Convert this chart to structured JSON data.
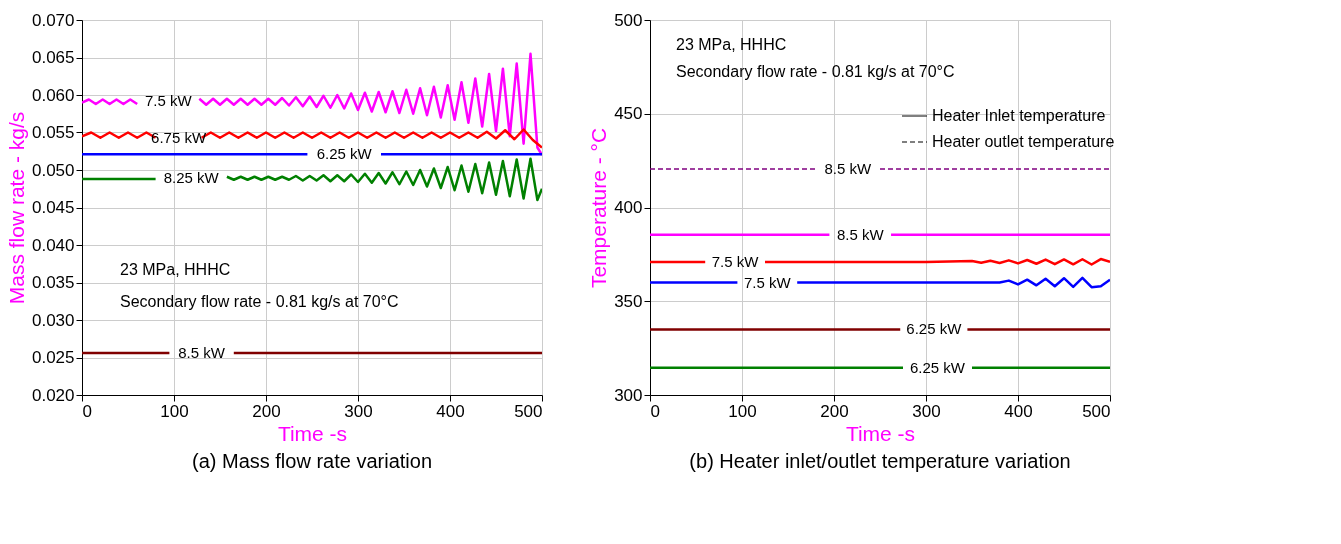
{
  "chart_data": [
    {
      "type": "line",
      "title": "(a)  Mass flow rate variation",
      "xlabel": "Time -s",
      "ylabel": "Mass flow rate - kg/s",
      "xlim": [
        0,
        500
      ],
      "xticks": [
        0,
        100,
        200,
        300,
        400,
        500
      ],
      "ylim": [
        0.02,
        0.07
      ],
      "yticks": [
        {
          "value": 0.02,
          "label": "0.020"
        },
        {
          "value": 0.025,
          "label": "0.025"
        },
        {
          "value": 0.03,
          "label": "0.030"
        },
        {
          "value": 0.035,
          "label": "0.035"
        },
        {
          "value": 0.04,
          "label": "0.040"
        },
        {
          "value": 0.045,
          "label": "0.045"
        },
        {
          "value": 0.05,
          "label": "0.050"
        },
        {
          "value": 0.055,
          "label": "0.055"
        },
        {
          "value": 0.06,
          "label": "0.060"
        },
        {
          "value": 0.065,
          "label": "0.065"
        },
        {
          "value": 0.07,
          "label": "0.070"
        }
      ],
      "grid": true,
      "annotations": [
        "23 MPa, HHHC",
        "Secondary flow rate - 0.81 kg/s at 70°C"
      ],
      "series": [
        {
          "name": "7.5 kW",
          "color": "#ff00ff",
          "x": [
            0,
            7.5,
            15,
            22.5,
            30,
            37.5,
            45,
            52.5,
            60,
            67.5,
            75,
            82.5,
            90,
            97.5,
            105,
            112.5,
            120,
            127.5,
            135,
            142.5,
            150,
            157.5,
            165,
            172.5,
            180,
            187.5,
            195,
            202.5,
            210,
            217.5,
            225,
            232.5,
            240,
            247.5,
            255,
            262.5,
            270,
            277.5,
            285,
            292.5,
            300,
            307.5,
            315,
            322.5,
            330,
            337.5,
            345,
            352.5,
            360,
            367.5,
            375,
            382.5,
            390,
            397.5,
            405,
            412.5,
            420,
            427.5,
            435,
            442.5,
            450,
            457.5,
            465,
            472.5,
            480,
            487.5,
            495,
            500
          ],
          "values": [
            0.059,
            0.0594,
            0.0588,
            0.0594,
            0.0588,
            0.0594,
            0.0588,
            0.0594,
            0.0588,
            null,
            null,
            null,
            null,
            null,
            null,
            null,
            null,
            0.0595,
            0.0587,
            0.0595,
            0.0587,
            0.0595,
            0.0587,
            0.0595,
            0.0587,
            0.0595,
            0.0587,
            0.0595,
            0.0587,
            0.0596,
            0.0586,
            0.0597,
            0.0585,
            0.0598,
            0.0584,
            0.0599,
            0.0583,
            0.06,
            0.0582,
            0.0602,
            0.058,
            0.0603,
            0.0578,
            0.0604,
            0.0577,
            0.0605,
            0.0576,
            0.0607,
            0.0575,
            0.0609,
            0.0573,
            0.0611,
            0.057,
            0.0613,
            0.0567,
            0.0617,
            0.0563,
            0.0622,
            0.0558,
            0.0628,
            0.0552,
            0.0635,
            0.0545,
            0.0642,
            0.0535,
            0.0655,
            0.053,
            0.052
          ]
        },
        {
          "name": "6.75 kW",
          "color": "#ff0000",
          "x": [
            0,
            10,
            20,
            30,
            40,
            50,
            60,
            70,
            80,
            90,
            100,
            110,
            120,
            130,
            140,
            150,
            160,
            170,
            180,
            190,
            200,
            210,
            220,
            230,
            240,
            250,
            260,
            270,
            280,
            290,
            300,
            310,
            320,
            330,
            340,
            350,
            360,
            370,
            380,
            390,
            400,
            410,
            420,
            430,
            440,
            450,
            460,
            470,
            480,
            490,
            500
          ],
          "values": [
            0.0545,
            0.055,
            0.0543,
            0.055,
            0.0543,
            0.055,
            0.0543,
            0.055,
            0.0543,
            null,
            null,
            null,
            null,
            0.0543,
            0.055,
            0.0543,
            0.055,
            0.0543,
            0.055,
            0.0543,
            0.055,
            0.0543,
            0.055,
            0.0543,
            0.055,
            0.0543,
            0.055,
            0.0543,
            0.055,
            0.0543,
            0.055,
            0.0543,
            0.055,
            0.0543,
            0.055,
            0.0543,
            0.055,
            0.0543,
            0.055,
            0.0543,
            0.055,
            0.0543,
            0.055,
            0.0543,
            0.0551,
            0.0542,
            0.0553,
            0.0541,
            0.0554,
            0.054,
            0.053
          ]
        },
        {
          "name": "6.25 kW",
          "color": "#0000ff",
          "x": [
            0,
            100,
            200,
            245,
            250,
            320,
            325,
            400,
            500
          ],
          "values": [
            0.0521,
            0.0521,
            0.0521,
            0.0521,
            null,
            null,
            0.0521,
            0.0521,
            0.0521
          ]
        },
        {
          "name": "8.25 kW",
          "color": "#008000",
          "x": [
            0,
            40,
            80,
            90,
            150,
            157.5,
            165,
            172.5,
            180,
            187.5,
            195,
            202.5,
            210,
            217.5,
            225,
            232.5,
            240,
            247.5,
            255,
            262.5,
            270,
            277.5,
            285,
            292.5,
            300,
            307.5,
            315,
            322.5,
            330,
            337.5,
            345,
            352.5,
            360,
            367.5,
            375,
            382.5,
            390,
            397.5,
            405,
            412.5,
            420,
            427.5,
            435,
            442.5,
            450,
            457.5,
            465,
            472.5,
            480,
            487.5,
            495,
            500
          ],
          "values": [
            0.0488,
            0.0488,
            0.0488,
            null,
            null,
            0.0491,
            0.0487,
            0.0491,
            0.0487,
            0.0491,
            0.0487,
            0.0491,
            0.0487,
            0.0491,
            0.0487,
            0.0492,
            0.0486,
            0.0492,
            0.0486,
            0.0493,
            0.0485,
            0.0493,
            0.0485,
            0.0494,
            0.0484,
            0.0495,
            0.0483,
            0.0496,
            0.0482,
            0.0497,
            0.0481,
            0.0498,
            0.048,
            0.05,
            0.0478,
            0.0502,
            0.0476,
            0.0504,
            0.0473,
            0.0506,
            0.0471,
            0.0508,
            0.0469,
            0.051,
            0.0467,
            0.0512,
            0.0465,
            0.0514,
            0.0462,
            0.0515,
            0.046,
            0.0475
          ]
        },
        {
          "name": "8.5 kW",
          "color": "#800000",
          "x": [
            0,
            95,
            100,
            160,
            165,
            500
          ],
          "values": [
            0.0256,
            0.0256,
            null,
            null,
            0.0256,
            0.0256
          ]
        }
      ]
    },
    {
      "type": "line",
      "title": "(b)  Heater inlet/outlet temperature  variation",
      "xlabel": "Time -s",
      "ylabel": "Temperature - °C",
      "xlim": [
        0,
        500
      ],
      "xticks": [
        0,
        100,
        200,
        300,
        400,
        500
      ],
      "ylim": [
        300,
        500
      ],
      "yticks": [
        300,
        350,
        400,
        450,
        500
      ],
      "grid": true,
      "annotations": [
        "23 MPa, HHHC",
        "Secondary flow rate - 0.81 kg/s at 70°C",
        "Heater Inlet temperature",
        "Heater outlet temperature"
      ],
      "series": [
        {
          "name": "8.5 kW",
          "color": "#800080",
          "line_style": "dashed",
          "x": [
            0,
            180,
            190,
            240,
            250,
            500
          ],
          "values": [
            420.5,
            420.5,
            null,
            null,
            420.5,
            420.5
          ]
        },
        {
          "name": "8.5 kW",
          "color": "#ff00ff",
          "x": [
            0,
            195,
            205,
            255,
            262,
            500
          ],
          "values": [
            385.5,
            385.5,
            null,
            null,
            385.5,
            385.5
          ]
        },
        {
          "name": "7.5 kW",
          "color": "#ff0000",
          "x": [
            0,
            60,
            70,
            115,
            125,
            300,
            350,
            360,
            370,
            380,
            390,
            400,
            410,
            420,
            430,
            440,
            450,
            460,
            470,
            480,
            490,
            500
          ],
          "values": [
            371,
            371,
            null,
            null,
            371,
            371,
            371.5,
            370.5,
            371.6,
            370.4,
            371.8,
            370.2,
            372,
            370,
            372.2,
            369.8,
            372.3,
            369.7,
            372.4,
            369.6,
            372.5,
            371
          ]
        },
        {
          "name": "7.5 kW",
          "color": "#0000ff",
          "x": [
            0,
            95,
            105,
            150,
            160,
            380,
            390,
            400,
            410,
            420,
            430,
            440,
            450,
            460,
            470,
            480,
            490,
            500
          ],
          "values": [
            360,
            360,
            null,
            null,
            360,
            360,
            361,
            359,
            361.5,
            358.5,
            362,
            358,
            362.3,
            357.7,
            362.5,
            357.5,
            358,
            361.5
          ]
        },
        {
          "name": "6.25 kW",
          "color": "#800000",
          "x": [
            0,
            272,
            282,
            335,
            345,
            500
          ],
          "values": [
            335,
            335,
            null,
            null,
            335,
            335
          ]
        },
        {
          "name": "6.25 kW",
          "color": "#008000",
          "x": [
            0,
            275,
            285,
            340,
            350,
            500
          ],
          "values": [
            314.5,
            314.5,
            null,
            null,
            314.5,
            314.5
          ]
        }
      ]
    }
  ]
}
